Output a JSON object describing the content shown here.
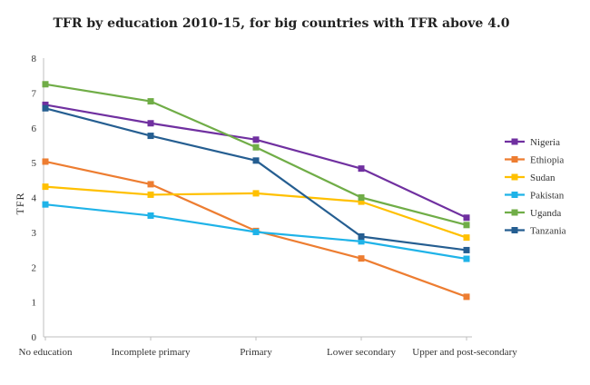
{
  "chart_data": {
    "type": "line",
    "title": "TFR by education 2010-15, for big countries with TFR above 4.0",
    "ylabel": "TFR",
    "xlabel": "",
    "categories": [
      "No education",
      "Incomplete primary",
      "Primary",
      "Lower secondary",
      "Upper and post-secondary"
    ],
    "ylim": [
      0,
      8
    ],
    "yticks": [
      "0",
      "1",
      "2",
      "3",
      "4",
      "5",
      "6",
      "7",
      "8"
    ],
    "grid": false,
    "legend_position": "right",
    "series": [
      {
        "name": "Nigeria",
        "color": "#7030a0",
        "values": [
          6.66,
          6.13,
          5.66,
          4.83,
          3.42
        ]
      },
      {
        "name": "Ethiopia",
        "color": "#ed7d31",
        "values": [
          5.03,
          4.38,
          3.04,
          2.25,
          1.15
        ]
      },
      {
        "name": "Sudan",
        "color": "#ffc000",
        "values": [
          4.31,
          4.08,
          4.12,
          3.88,
          2.85
        ]
      },
      {
        "name": "Pakistan",
        "color": "#1fb3e8",
        "values": [
          3.8,
          3.48,
          3.01,
          2.74,
          2.24
        ]
      },
      {
        "name": "Uganda",
        "color": "#70ad47",
        "values": [
          7.25,
          6.76,
          5.44,
          4.0,
          3.21
        ]
      },
      {
        "name": "Tanzania",
        "color": "#255e91",
        "values": [
          6.56,
          5.77,
          5.06,
          2.88,
          2.49
        ]
      }
    ]
  }
}
